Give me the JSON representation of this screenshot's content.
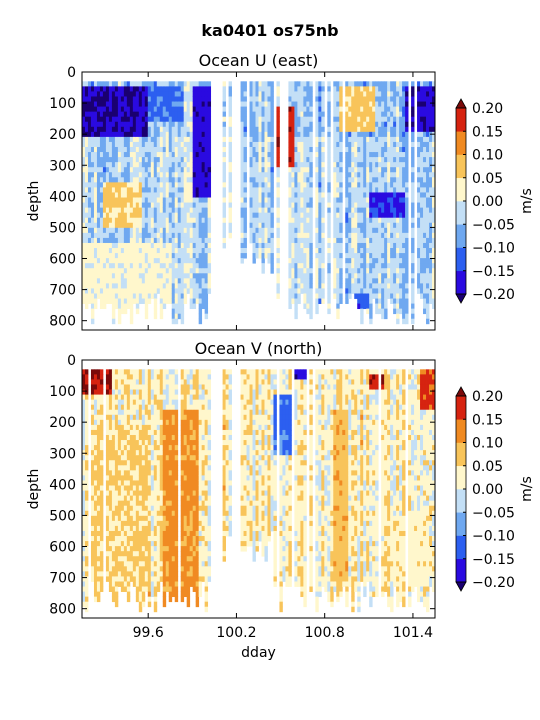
{
  "title": "ka0401 os75nb",
  "chart_data": [
    {
      "type": "heatmap",
      "title": "Ocean U (east)",
      "xlabel": "",
      "ylabel": "depth",
      "x_range": [
        99.15,
        101.55
      ],
      "y_range": [
        830,
        0
      ],
      "y_ticks": [
        0,
        100,
        200,
        300,
        400,
        500,
        600,
        700,
        800
      ],
      "x_ticks": [
        99.6,
        100.2,
        100.8,
        101.4
      ],
      "x_tick_labels_shown": false,
      "colorbar": {
        "label": "m/s",
        "levels": [
          -0.2,
          -0.15,
          -0.1,
          -0.05,
          0.0,
          0.05,
          0.1,
          0.15,
          0.2
        ],
        "tick_labels": [
          "0.20",
          "0.15",
          "0.10",
          "0.05",
          "0.00",
          "−0.05",
          "−0.10",
          "−0.15",
          "−0.20"
        ],
        "extend": "both"
      },
      "coverage_note_depth_max": 830,
      "features": [
        {
          "x": [
            99.15,
            99.6
          ],
          "y": [
            40,
            200
          ],
          "value": -0.2
        },
        {
          "x": [
            99.6,
            99.85
          ],
          "y": [
            40,
            150
          ],
          "value": -0.12
        },
        {
          "x": [
            99.9,
            100.05
          ],
          "y": [
            40,
            400
          ],
          "value": -0.18
        },
        {
          "x": [
            100.45,
            100.6
          ],
          "y": [
            100,
            300
          ],
          "value": 0.18
        },
        {
          "x": [
            100.9,
            101.15
          ],
          "y": [
            40,
            180
          ],
          "value": 0.07
        },
        {
          "x": [
            101.1,
            101.35
          ],
          "y": [
            380,
            460
          ],
          "value": -0.16
        },
        {
          "x": [
            101.35,
            101.55
          ],
          "y": [
            40,
            180
          ],
          "value": -0.19
        },
        {
          "x": [
            99.3,
            99.55
          ],
          "y": [
            350,
            500
          ],
          "value": 0.06
        },
        {
          "x": [
            99.15,
            99.75
          ],
          "y": [
            550,
            800
          ],
          "value": 0.02
        },
        {
          "x": [
            101.0,
            101.1
          ],
          "y": [
            700,
            760
          ],
          "value": -0.14
        }
      ]
    },
    {
      "type": "heatmap",
      "title": "Ocean V (north)",
      "xlabel": "dday",
      "ylabel": "depth",
      "x_range": [
        99.15,
        101.55
      ],
      "y_range": [
        830,
        0
      ],
      "y_ticks": [
        0,
        100,
        200,
        300,
        400,
        500,
        600,
        700,
        800
      ],
      "x_ticks": [
        99.6,
        100.2,
        100.8,
        101.4
      ],
      "x_tick_labels": [
        "99.6",
        "100.2",
        "100.8",
        "101.4"
      ],
      "colorbar": {
        "label": "m/s",
        "levels": [
          -0.2,
          -0.15,
          -0.1,
          -0.05,
          0.0,
          0.05,
          0.1,
          0.15,
          0.2
        ],
        "tick_labels": [
          "0.20",
          "0.15",
          "0.10",
          "0.05",
          "0.00",
          "−0.05",
          "−0.10",
          "−0.15",
          "−0.20"
        ],
        "extend": "both"
      },
      "features": [
        {
          "x": [
            99.15,
            99.35
          ],
          "y": [
            30,
            110
          ],
          "value": 0.2
        },
        {
          "x": [
            99.7,
            99.95
          ],
          "y": [
            150,
            800
          ],
          "value": 0.12
        },
        {
          "x": [
            99.2,
            99.6
          ],
          "y": [
            200,
            800
          ],
          "value": 0.06
        },
        {
          "x": [
            100.45,
            100.6
          ],
          "y": [
            100,
            300
          ],
          "value": -0.12
        },
        {
          "x": [
            100.6,
            100.7
          ],
          "y": [
            30,
            60
          ],
          "value": -0.18
        },
        {
          "x": [
            100.85,
            100.95
          ],
          "y": [
            150,
            700
          ],
          "value": 0.08
        },
        {
          "x": [
            101.1,
            101.2
          ],
          "y": [
            40,
            90
          ],
          "value": 0.19
        },
        {
          "x": [
            101.45,
            101.55
          ],
          "y": [
            30,
            150
          ],
          "value": 0.17
        },
        {
          "x": [
            101.25,
            101.5
          ],
          "y": [
            500,
            700
          ],
          "value": 0.03
        }
      ]
    }
  ]
}
